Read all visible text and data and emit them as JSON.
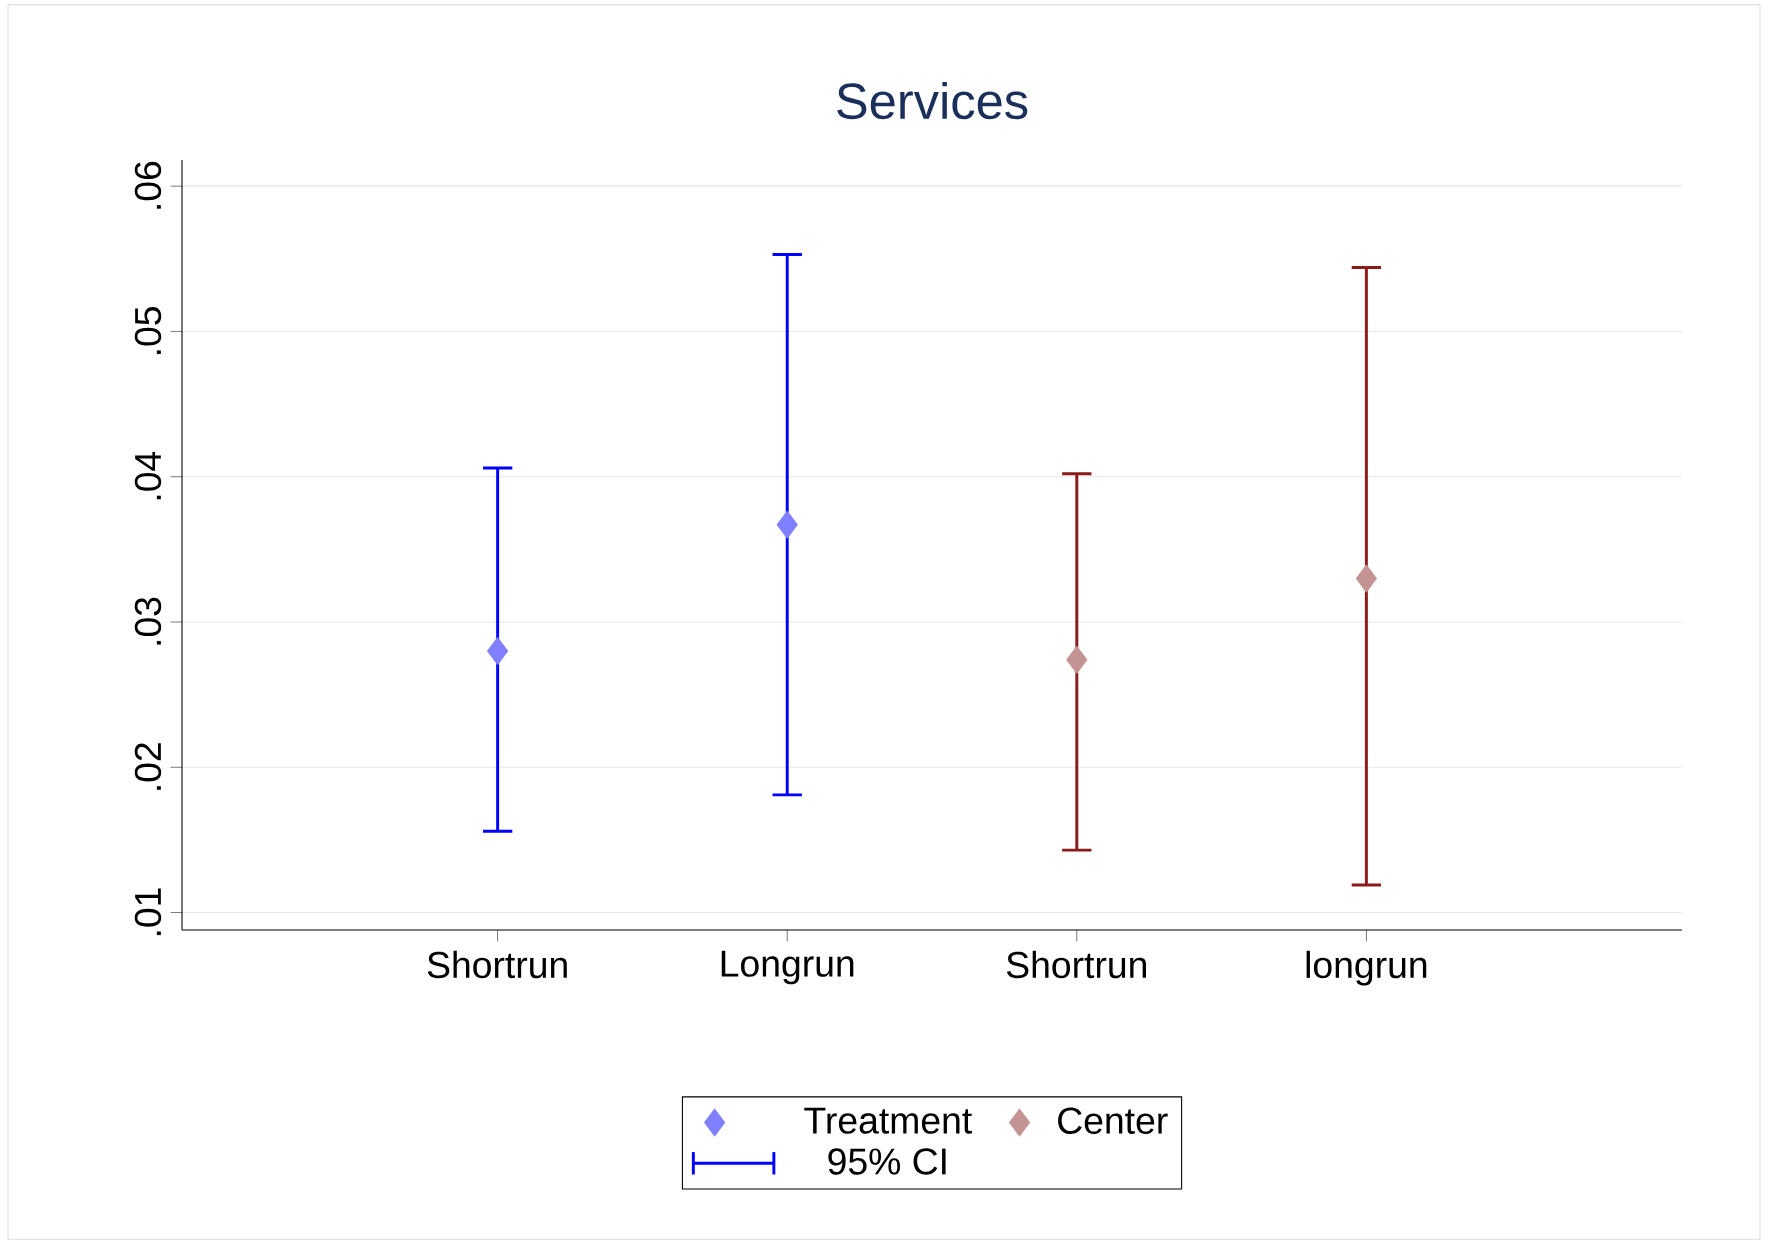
{
  "chart_data": {
    "type": "scatter",
    "title": "Services",
    "categories": [
      "Shortrun",
      "Longrun",
      "Shortrun",
      "longrun"
    ],
    "series": [
      {
        "name": "Treatment",
        "color": "#7f7fff",
        "values": [
          0.028,
          0.0367,
          null,
          null
        ],
        "errors": [
          [
            0.0156,
            0.0406
          ],
          [
            0.0181,
            0.0553
          ],
          null,
          null
        ]
      },
      {
        "name": "Center",
        "color": "#c49494",
        "values": [
          null,
          null,
          0.0274,
          0.033
        ],
        "errors": [
          null,
          null,
          [
            0.0143,
            0.0402
          ],
          [
            0.0119,
            0.0544
          ]
        ]
      },
      {
        "name": "95% CI",
        "type": "line",
        "color": "#0000ff",
        "values": [
          null,
          null,
          null,
          null
        ]
      }
    ],
    "ylim": [
      0.0088,
      0.0618
    ],
    "yticks": [
      {
        "value": 0.01,
        "label": ".01"
      },
      {
        "value": 0.02,
        "label": ".02"
      },
      {
        "value": 0.03,
        "label": ".03"
      },
      {
        "value": 0.04,
        "label": ".04"
      },
      {
        "value": 0.05,
        "label": ".05"
      },
      {
        "value": 0.06,
        "label": ".06"
      }
    ],
    "grid": "y",
    "legend": "bottom",
    "marker": "diamond"
  }
}
